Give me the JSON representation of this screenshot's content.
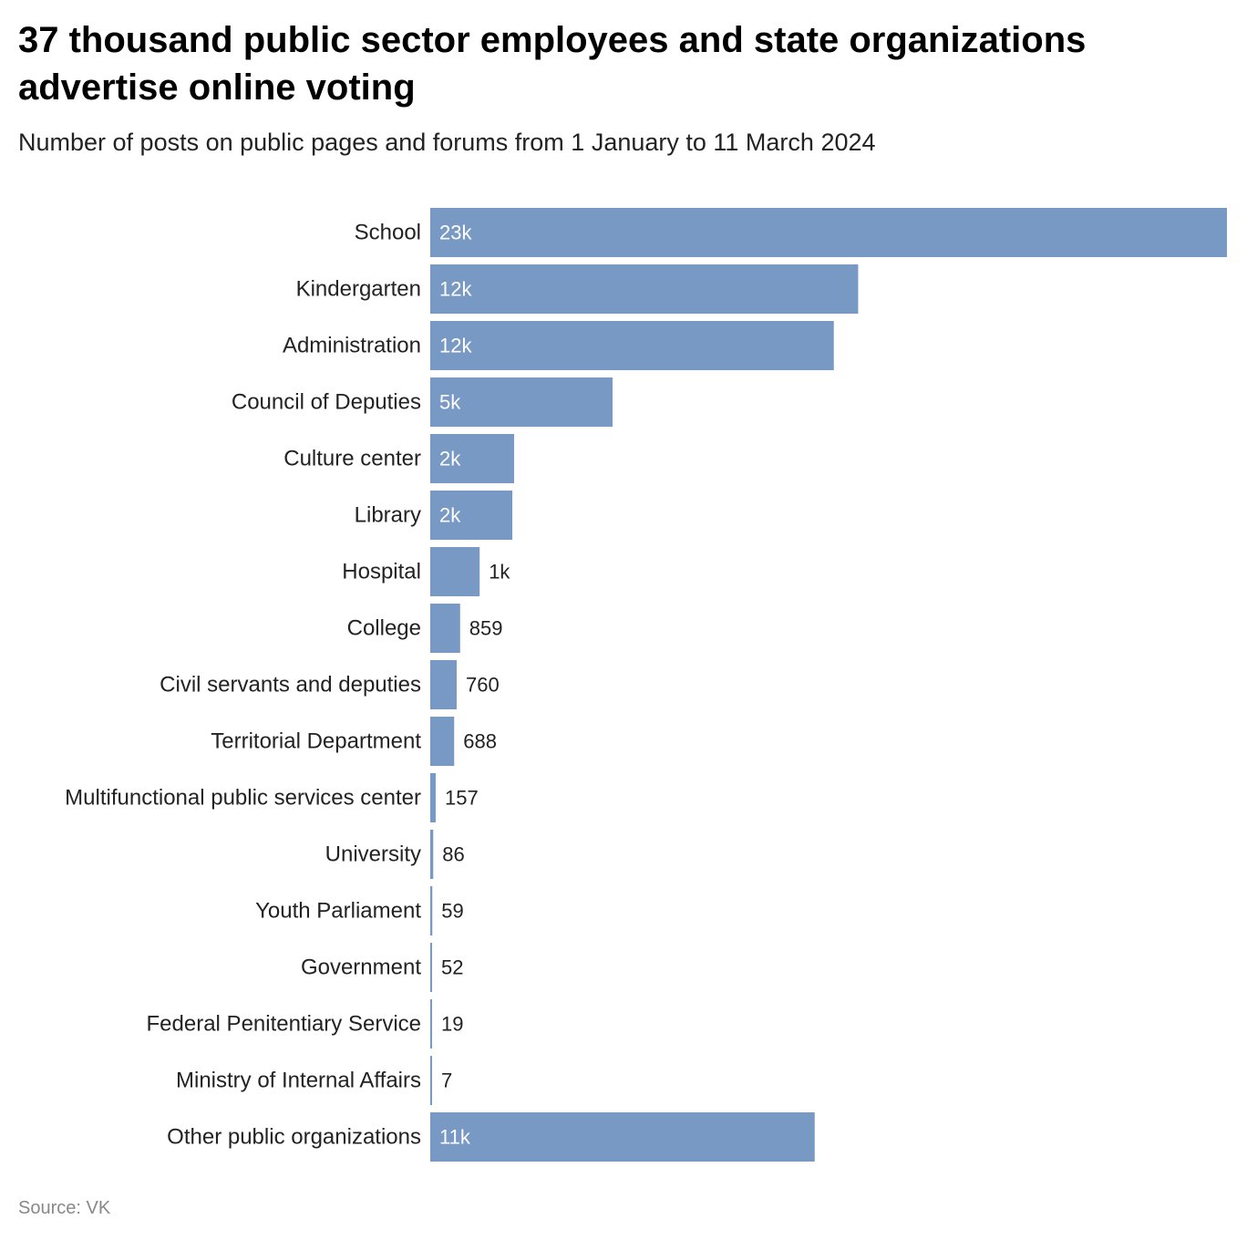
{
  "title": "37 thousand public sector employees and state organizations advertise online voting",
  "subtitle": "Number of posts on public pages and forums from 1 January to 11 March 2024",
  "source": "Source: VK",
  "colors": {
    "bar": "#7799c4",
    "label_inside": "#ffffff",
    "label_outside": "#222222",
    "category_text": "#222222"
  },
  "chart_data": {
    "type": "bar",
    "orientation": "horizontal",
    "categories": [
      "School",
      "Kindergarten",
      "Administration",
      "Council of Deputies",
      "Culture center",
      "Library",
      "Hospital",
      "College",
      "Civil servants and deputies",
      "Territorial Department",
      "Multifunctional public services center",
      "University",
      "Youth Parliament",
      "Government",
      "Federal Penitentiary Service",
      "Ministry of Internal Affairs",
      "Other public organizations"
    ],
    "values": [
      22900,
      12300,
      11600,
      5240,
      2410,
      2360,
      1420,
      859,
      760,
      688,
      157,
      86,
      59,
      52,
      19,
      7,
      11050
    ],
    "data_labels": [
      "23k",
      "12k",
      "12k",
      "5k",
      "2k",
      "2k",
      "1k",
      "859",
      "760",
      "688",
      "157",
      "86",
      "59",
      "52",
      "19",
      "7",
      "11k"
    ],
    "xlim": [
      0,
      22900
    ],
    "grid": false,
    "legend": "none"
  }
}
